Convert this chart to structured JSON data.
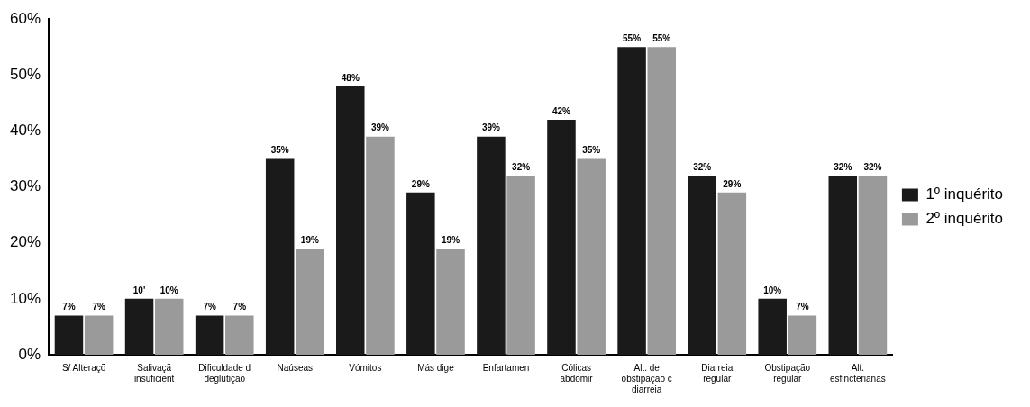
{
  "chart_data": {
    "type": "bar",
    "categories": [
      "S/ Alteraçõ",
      "Salivaçã\ninsuficient",
      "Dificuldade d\ndeglutição",
      "Naúseas",
      "Vómitos",
      "Más dige",
      "Enfartamen",
      "Cólicas\nabdomir",
      "Alt. de\nobstipação c\ndiarreia",
      "Diarreia\nregular",
      "Obstipação\nregular",
      "Alt.\nesfincterianas"
    ],
    "series": [
      {
        "name": "1º inquérito",
        "color": "#1a1a1a",
        "values": [
          7,
          10,
          7,
          35,
          48,
          29,
          39,
          42,
          55,
          32,
          10,
          32
        ],
        "value_labels": [
          "7%",
          "10'",
          "7%",
          "35%",
          "48%",
          "29%",
          "39%",
          "42%",
          "55%",
          "32%",
          "10%",
          "32%"
        ]
      },
      {
        "name": "2º inquérito",
        "color": "#9a9a9a",
        "values": [
          7,
          10,
          7,
          19,
          39,
          19,
          32,
          35,
          55,
          29,
          7,
          32
        ],
        "value_labels": [
          "7%",
          "10%",
          "7%",
          "19%",
          "39%",
          "19%",
          "32%",
          "35%",
          "55%",
          "29%",
          "7%",
          "32%"
        ]
      }
    ],
    "ylim": [
      0,
      60
    ],
    "yticks": [
      {
        "value": 0,
        "label": "0%"
      },
      {
        "value": 10,
        "label": "10%"
      },
      {
        "value": 20,
        "label": "20%"
      },
      {
        "value": 30,
        "label": "30%"
      },
      {
        "value": 40,
        "label": "40%"
      },
      {
        "value": 50,
        "label": "50%"
      },
      {
        "value": 60,
        "label": "60%"
      }
    ],
    "grid": false,
    "legend": "right"
  }
}
